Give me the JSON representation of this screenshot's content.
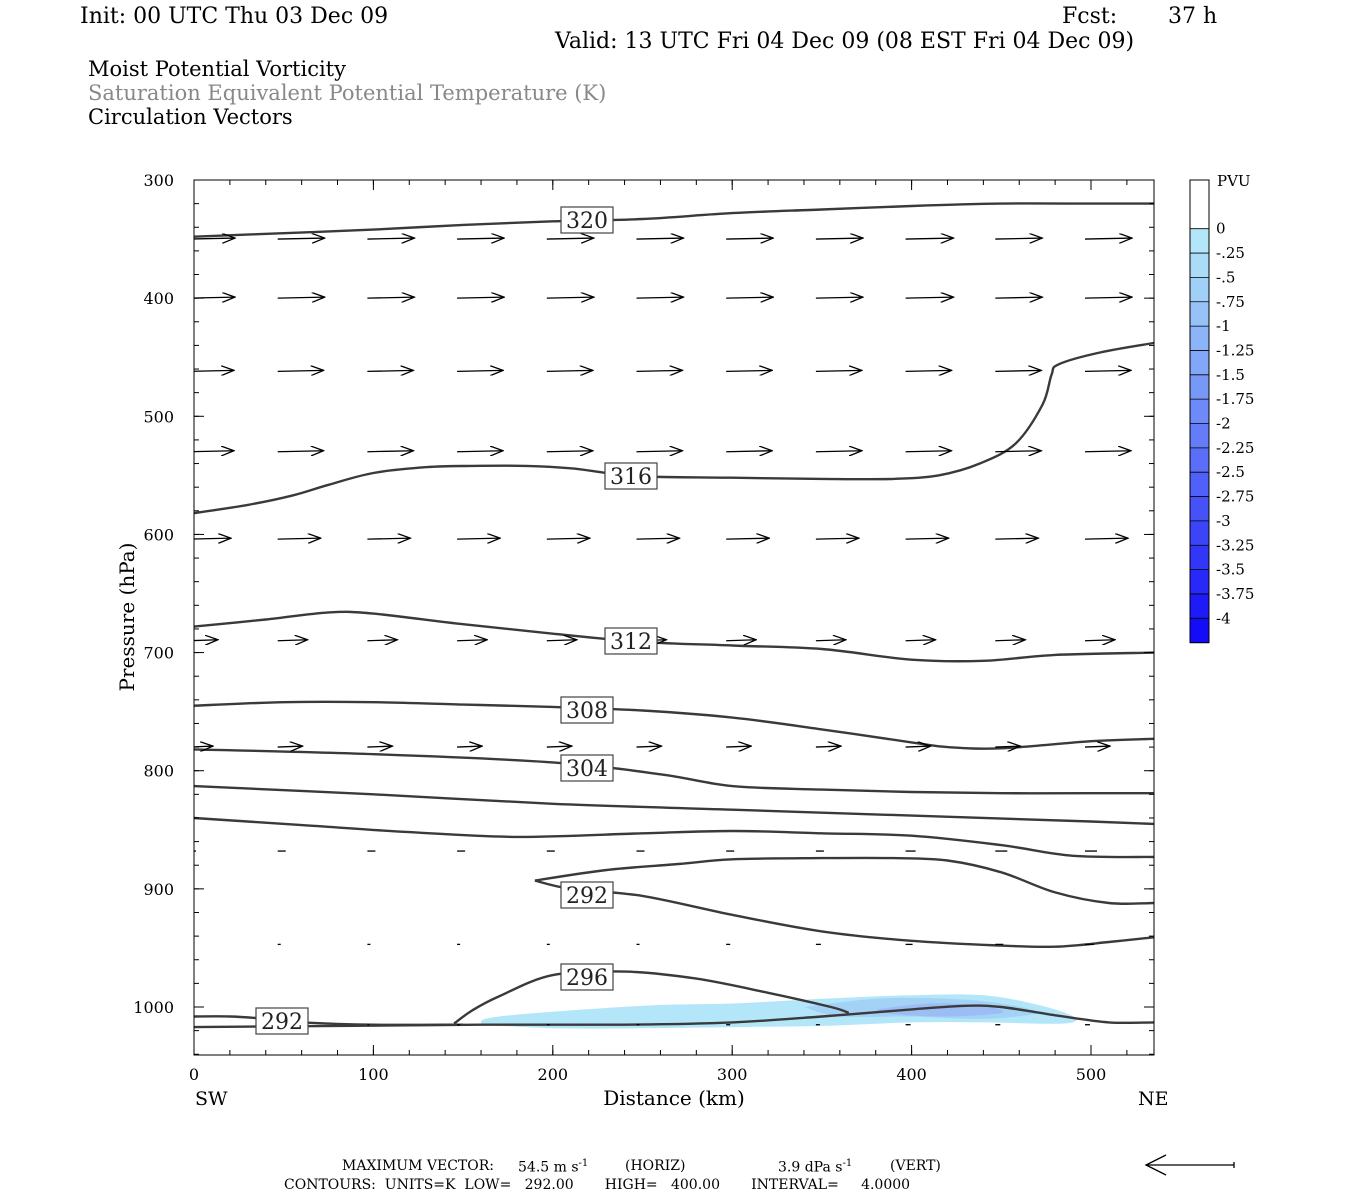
{
  "header": {
    "init": "Init: 00 UTC Thu 03 Dec 09",
    "fcst_label": "Fcst:",
    "fcst_value": "37 h",
    "valid": "Valid: 13 UTC Fri 04 Dec 09 (08 EST Fri 04 Dec 09)"
  },
  "titles": {
    "line1": "Moist Potential Vorticity",
    "line2": "Saturation Equivalent Potential Temperature (K)",
    "line3": "Circulation Vectors"
  },
  "chart_data": {
    "type": "cross-section",
    "xlabel": "Distance (km)",
    "ylabel": "Pressure (hPa)",
    "xlim": [
      0,
      535
    ],
    "ylim": [
      1040,
      300
    ],
    "x_ticks": [
      "0",
      "100",
      "200",
      "300",
      "400",
      "500"
    ],
    "y_ticks": [
      "300",
      "400",
      "500",
      "600",
      "700",
      "800",
      "900",
      "1000"
    ],
    "x_end_left": "SW",
    "x_end_right": "NE",
    "colorbar": {
      "title": "PVU",
      "labels": [
        "0",
        "-.25",
        "-.5",
        "-.75",
        "-1",
        "-1.25",
        "-1.5",
        "-1.75",
        "-2",
        "-2.25",
        "-2.5",
        "-2.75",
        "-3",
        "-3.25",
        "-3.5",
        "-3.75",
        "-4"
      ],
      "colors": [
        "#ffffff",
        "#ffffff",
        "#b4e6fa",
        "#aadcf8",
        "#a0d0f8",
        "#96c2f8",
        "#8cb4f8",
        "#82a6f8",
        "#7898f8",
        "#6e8af8",
        "#647cf8",
        "#5a6ef8",
        "#5060f8",
        "#4652f8",
        "#3c44f8",
        "#3236f8",
        "#2828f8",
        "#1e1af8",
        "#140cf8"
      ]
    },
    "contours": [
      {
        "label": "320",
        "points": [
          [
            0,
            348
          ],
          [
            50,
            345
          ],
          [
            100,
            342
          ],
          [
            150,
            338
          ],
          [
            200,
            335
          ],
          [
            250,
            333
          ],
          [
            300,
            328
          ],
          [
            350,
            325
          ],
          [
            400,
            322
          ],
          [
            450,
            320
          ],
          [
            500,
            320
          ],
          [
            535,
            320
          ]
        ]
      },
      {
        "label": "316",
        "points": [
          [
            0,
            582
          ],
          [
            30,
            575
          ],
          [
            55,
            567
          ],
          [
            75,
            558
          ],
          [
            100,
            548
          ],
          [
            130,
            543
          ],
          [
            155,
            542
          ],
          [
            185,
            542
          ],
          [
            210,
            544
          ],
          [
            230,
            548
          ],
          [
            250,
            551
          ],
          [
            300,
            552
          ],
          [
            350,
            553
          ],
          [
            390,
            553
          ],
          [
            415,
            550
          ],
          [
            438,
            540
          ],
          [
            458,
            523
          ],
          [
            473,
            490
          ],
          [
            478,
            465
          ],
          [
            482,
            456
          ],
          [
            505,
            446
          ],
          [
            535,
            438
          ]
        ]
      },
      {
        "label": "312",
        "points": [
          [
            0,
            678
          ],
          [
            40,
            672
          ],
          [
            75,
            666
          ],
          [
            100,
            667
          ],
          [
            150,
            676
          ],
          [
            200,
            684
          ],
          [
            250,
            691
          ],
          [
            300,
            694
          ],
          [
            350,
            697
          ],
          [
            400,
            706
          ],
          [
            440,
            707
          ],
          [
            480,
            702
          ],
          [
            535,
            700
          ]
        ]
      },
      {
        "label": "308",
        "points": [
          [
            0,
            745
          ],
          [
            50,
            742
          ],
          [
            100,
            742
          ],
          [
            150,
            744
          ],
          [
            200,
            746
          ],
          [
            250,
            749
          ],
          [
            300,
            755
          ],
          [
            350,
            765
          ],
          [
            400,
            776
          ],
          [
            420,
            780
          ],
          [
            450,
            781
          ],
          [
            500,
            775
          ],
          [
            535,
            773
          ]
        ]
      },
      {
        "label": "304",
        "points": [
          [
            0,
            782
          ],
          [
            100,
            786
          ],
          [
            200,
            793
          ],
          [
            260,
            803
          ],
          [
            300,
            813
          ],
          [
            350,
            816
          ],
          [
            400,
            818
          ],
          [
            450,
            819
          ],
          [
            500,
            819
          ],
          [
            535,
            819
          ]
        ]
      },
      {
        "label": "",
        "points": [
          [
            0,
            813
          ],
          [
            100,
            820
          ],
          [
            200,
            828
          ],
          [
            300,
            833
          ],
          [
            400,
            838
          ],
          [
            500,
            843
          ],
          [
            535,
            845
          ]
        ]
      },
      {
        "label": "",
        "points": [
          [
            0,
            840
          ],
          [
            60,
            846
          ],
          [
            120,
            852
          ],
          [
            180,
            856
          ],
          [
            250,
            853
          ],
          [
            300,
            851
          ],
          [
            350,
            853
          ],
          [
            400,
            855
          ],
          [
            450,
            863
          ],
          [
            490,
            872
          ],
          [
            535,
            873
          ]
        ]
      },
      {
        "label": "292",
        "points": [
          [
            190,
            893
          ],
          [
            230,
            884
          ],
          [
            270,
            879
          ],
          [
            300,
            875
          ],
          [
            350,
            874
          ],
          [
            390,
            874
          ],
          [
            420,
            876
          ],
          [
            450,
            886
          ],
          [
            480,
            903
          ],
          [
            510,
            912
          ],
          [
            535,
            912
          ]
        ]
      },
      {
        "label": "",
        "points": [
          [
            190,
            893
          ],
          [
            210,
            900
          ],
          [
            250,
            906
          ],
          [
            300,
            922
          ],
          [
            350,
            936
          ],
          [
            400,
            944
          ],
          [
            450,
            948
          ],
          [
            480,
            949
          ],
          [
            510,
            945
          ],
          [
            535,
            941
          ]
        ]
      },
      {
        "label": "296",
        "points": [
          [
            145,
            1014
          ],
          [
            155,
            1003
          ],
          [
            170,
            991
          ],
          [
            200,
            973
          ],
          [
            240,
            970
          ],
          [
            280,
            976
          ],
          [
            320,
            988
          ],
          [
            355,
            1000
          ],
          [
            365,
            1005
          ]
        ]
      },
      {
        "label": "292",
        "points": [
          [
            0,
            1017
          ],
          [
            80,
            1016
          ],
          [
            160,
            1015
          ],
          [
            240,
            1015
          ],
          [
            300,
            1013
          ],
          [
            350,
            1008
          ],
          [
            400,
            1002
          ],
          [
            430,
            999
          ],
          [
            450,
            1000
          ],
          [
            480,
            1007
          ],
          [
            510,
            1013
          ],
          [
            535,
            1013
          ]
        ]
      },
      {
        "label": "",
        "points": [
          [
            0,
            1008
          ],
          [
            20,
            1008
          ],
          [
            40,
            1010
          ],
          [
            60,
            1013
          ],
          [
            100,
            1015
          ],
          [
            150,
            1015
          ]
        ]
      }
    ],
    "pv_shading": [
      {
        "value": -0.25,
        "points": [
          [
            160,
            1015
          ],
          [
            170,
            1008
          ],
          [
            250,
            999
          ],
          [
            300,
            997
          ],
          [
            350,
            993
          ],
          [
            400,
            990
          ],
          [
            440,
            990
          ],
          [
            470,
            998
          ],
          [
            490,
            1008
          ],
          [
            485,
            1014
          ],
          [
            440,
            1013
          ],
          [
            400,
            1013
          ],
          [
            350,
            1016
          ],
          [
            300,
            1017
          ],
          [
            250,
            1018
          ],
          [
            200,
            1018
          ],
          [
            160,
            1015
          ]
        ]
      },
      {
        "value": -0.5,
        "points": [
          [
            340,
            1000
          ],
          [
            380,
            993
          ],
          [
            420,
            993
          ],
          [
            450,
            997
          ],
          [
            470,
            1005
          ],
          [
            440,
            1010
          ],
          [
            400,
            1008
          ],
          [
            360,
            1008
          ],
          [
            340,
            1000
          ]
        ]
      },
      {
        "value": -0.75,
        "points": [
          [
            380,
            1002
          ],
          [
            410,
            997
          ],
          [
            440,
            999
          ],
          [
            450,
            1005
          ],
          [
            420,
            1008
          ],
          [
            390,
            1006
          ],
          [
            380,
            1002
          ]
        ]
      }
    ],
    "vector_rows": [
      {
        "p": 350,
        "vectors": [
          [
            0,
            47
          ],
          [
            50,
            47
          ],
          [
            100,
            47
          ],
          [
            150,
            47
          ],
          [
            200,
            47
          ],
          [
            250,
            47
          ],
          [
            300,
            47
          ],
          [
            350,
            47
          ],
          [
            400,
            48
          ],
          [
            450,
            47
          ],
          [
            500,
            47
          ]
        ]
      },
      {
        "p": 400,
        "vectors": [
          [
            0,
            47
          ],
          [
            50,
            47
          ],
          [
            100,
            47
          ],
          [
            150,
            47
          ],
          [
            200,
            47
          ],
          [
            250,
            47
          ],
          [
            300,
            47
          ],
          [
            350,
            47
          ],
          [
            400,
            48
          ],
          [
            450,
            47
          ],
          [
            500,
            47
          ]
        ]
      },
      {
        "p": 462,
        "vectors": [
          [
            0,
            46
          ],
          [
            50,
            46
          ],
          [
            100,
            46
          ],
          [
            150,
            46
          ],
          [
            200,
            46
          ],
          [
            250,
            46
          ],
          [
            300,
            46
          ],
          [
            350,
            46
          ],
          [
            400,
            46
          ],
          [
            450,
            46
          ],
          [
            500,
            46
          ]
        ]
      },
      {
        "p": 530,
        "vectors": [
          [
            0,
            46
          ],
          [
            50,
            46
          ],
          [
            100,
            46
          ],
          [
            150,
            46
          ],
          [
            200,
            46
          ],
          [
            250,
            46
          ],
          [
            300,
            46
          ],
          [
            350,
            46
          ],
          [
            400,
            46
          ],
          [
            450,
            46
          ],
          [
            500,
            46
          ]
        ]
      },
      {
        "p": 604,
        "vectors": [
          [
            0,
            43
          ],
          [
            50,
            43
          ],
          [
            100,
            43
          ],
          [
            150,
            43
          ],
          [
            200,
            43
          ],
          [
            250,
            43
          ],
          [
            300,
            43
          ],
          [
            350,
            43
          ],
          [
            400,
            43
          ],
          [
            450,
            43
          ],
          [
            500,
            43
          ]
        ]
      },
      {
        "p": 690,
        "vectors": [
          [
            0,
            30
          ],
          [
            50,
            30
          ],
          [
            100,
            30
          ],
          [
            150,
            30
          ],
          [
            200,
            30
          ],
          [
            250,
            30
          ],
          [
            300,
            30
          ],
          [
            350,
            30
          ],
          [
            400,
            30
          ],
          [
            450,
            30
          ],
          [
            500,
            30
          ]
        ]
      },
      {
        "p": 780,
        "vectors": [
          [
            0,
            25
          ],
          [
            50,
            25
          ],
          [
            100,
            25
          ],
          [
            150,
            25
          ],
          [
            200,
            25
          ],
          [
            250,
            25
          ],
          [
            300,
            25
          ],
          [
            350,
            25
          ],
          [
            400,
            25
          ],
          [
            450,
            25
          ],
          [
            500,
            25
          ]
        ]
      },
      {
        "p": 868,
        "vectors": [
          [
            0,
            8
          ],
          [
            50,
            8
          ],
          [
            100,
            8
          ],
          [
            150,
            8
          ],
          [
            200,
            8
          ],
          [
            250,
            8
          ],
          [
            300,
            8
          ],
          [
            350,
            8
          ],
          [
            400,
            10
          ],
          [
            450,
            12
          ],
          [
            500,
            12
          ]
        ]
      },
      {
        "p": 947,
        "vectors": [
          [
            0,
            2
          ],
          [
            50,
            3
          ],
          [
            100,
            3
          ],
          [
            150,
            3
          ],
          [
            200,
            3
          ],
          [
            250,
            3
          ],
          [
            300,
            4
          ],
          [
            350,
            5
          ],
          [
            400,
            7
          ],
          [
            450,
            8
          ],
          [
            500,
            9
          ]
        ]
      },
      {
        "p": 1015,
        "vectors": [
          [
            0,
            2
          ],
          [
            50,
            2
          ],
          [
            100,
            2
          ],
          [
            150,
            3
          ],
          [
            200,
            3
          ],
          [
            250,
            3
          ],
          [
            300,
            4
          ],
          [
            350,
            4
          ],
          [
            400,
            5
          ],
          [
            450,
            5
          ],
          [
            500,
            5
          ]
        ]
      }
    ]
  },
  "footer": {
    "max_vector_label": "MAXIMUM VECTOR:",
    "max_vector_horiz": "54.5 m s",
    "max_vector_horiz_exp": "-1",
    "horiz_tag": "(HORIZ)",
    "max_vector_vert": "3.9 dPa s",
    "max_vector_vert_exp": "-1",
    "vert_tag": "(VERT)",
    "contours_line": "CONTOURS:  UNITS=K  LOW=   292.00       HIGH=   400.00       INTERVAL=     4.0000"
  }
}
